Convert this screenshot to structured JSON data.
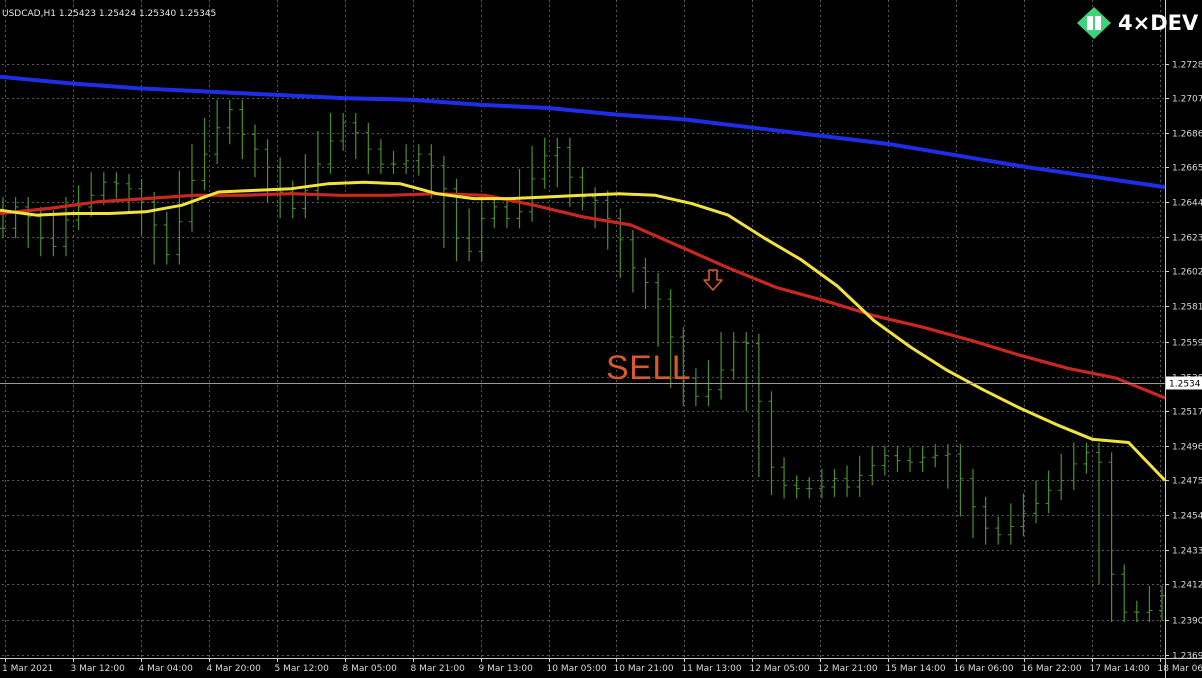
{
  "chart_data": {
    "type": "line",
    "header": "USDCAD,H1  1.25423 1.25424 1.25340 1.25345",
    "logo_text": "4×DEV",
    "annotation": "SELL",
    "current_price": "1.2534",
    "ylim": [
      1.2369,
      1.2735
    ],
    "grid": true,
    "y_ticks": [
      "1.2728",
      "1.2707",
      "1.2686",
      "1.2665",
      "1.2644",
      "1.2623",
      "1.2602",
      "1.2581",
      "1.2559",
      "1.2538",
      "1.2517",
      "1.2496",
      "1.2475",
      "1.2454",
      "1.2433",
      "1.2412",
      "1.2390",
      "1.2369"
    ],
    "x_ticks": [
      "1 Mar 2021",
      "3 Mar 12:00",
      "4 Mar 04:00",
      "4 Mar 20:00",
      "5 Mar 12:00",
      "8 Mar 05:00",
      "8 Mar 21:00",
      "9 Mar 13:00",
      "10 Mar 05:00",
      "10 Mar 21:00",
      "11 Mar 13:00",
      "12 Mar 05:00",
      "12 Mar 21:00",
      "15 Mar 14:00",
      "16 Mar 06:00",
      "16 Mar 22:00",
      "17 Mar 14:00",
      "18 Mar 06:00"
    ],
    "colors": {
      "price": "#4a8f2c",
      "ma_fast": "#f0e33c",
      "ma_mid": "#c8281e",
      "ma_slow": "#1e2ee6",
      "sell": "#d65a2c",
      "grid": "#5a5a5a"
    },
    "series": [
      {
        "key": "price",
        "values": [
          1.2628,
          1.2641,
          1.2635,
          1.2622,
          1.2617,
          1.2633,
          1.2641,
          1.2648,
          1.2656,
          1.2655,
          1.2652,
          1.2644,
          1.263,
          1.2612,
          1.2632,
          1.2657,
          1.2673,
          1.2689,
          1.27,
          1.2685,
          1.2676,
          1.2665,
          1.265,
          1.264,
          1.2651,
          1.2667,
          1.2681,
          1.2692,
          1.2686,
          1.2676,
          1.2667,
          1.2667,
          1.2669,
          1.2673,
          1.2666,
          1.2652,
          1.2622,
          1.2614,
          1.2634,
          1.2641,
          1.2634,
          1.2638,
          1.2658,
          1.2672,
          1.2677,
          1.2659,
          1.2647,
          1.2645,
          1.2634,
          1.2621,
          1.2604,
          1.2595,
          1.2585,
          1.2562,
          1.2537,
          1.2526,
          1.253,
          1.2542,
          1.2559,
          1.2558,
          1.2523,
          1.2483,
          1.2472,
          1.247,
          1.247,
          1.2471,
          1.2476,
          1.2471,
          1.2478,
          1.2484,
          1.249,
          1.2487,
          1.2486,
          1.2489,
          1.249,
          1.2491,
          1.2476,
          1.2459,
          1.2446,
          1.2442,
          1.2447,
          1.2455,
          1.2461,
          1.2469,
          1.2475,
          1.2485,
          1.2492,
          1.2486,
          1.2418,
          1.2395,
          1.2395,
          1.2396,
          1.2405
        ]
      },
      {
        "key": "ma_fast",
        "values": [
          1.2639,
          1.2636,
          1.2637,
          1.2637,
          1.2638,
          1.2642,
          1.265,
          1.2651,
          1.2652,
          1.2655,
          1.2656,
          1.2655,
          1.2649,
          1.2646,
          1.2646,
          1.2647,
          1.2648,
          1.2649,
          1.2648,
          1.2643,
          1.2636,
          1.2622,
          1.2609,
          1.2593,
          1.2572,
          1.2556,
          1.2542,
          1.253,
          1.2519,
          1.2509,
          1.25,
          1.2498,
          1.2475
        ]
      },
      {
        "key": "ma_mid",
        "values": [
          1.2637,
          1.264,
          1.2644,
          1.2646,
          1.2648,
          1.2648,
          1.2649,
          1.2648,
          1.2648,
          1.2649,
          1.2648,
          1.2642,
          1.2635,
          1.263,
          1.2617,
          1.2604,
          1.2592,
          1.2584,
          1.2575,
          1.2568,
          1.256,
          1.2551,
          1.2543,
          1.2537,
          1.2525
        ]
      },
      {
        "key": "ma_slow",
        "values": [
          1.272,
          1.2716,
          1.2713,
          1.2711,
          1.2709,
          1.2707,
          1.2706,
          1.2703,
          1.2701,
          1.2697,
          1.2694,
          1.2689,
          1.2684,
          1.2679,
          1.2672,
          1.2665,
          1.2659,
          1.2653
        ]
      }
    ]
  }
}
